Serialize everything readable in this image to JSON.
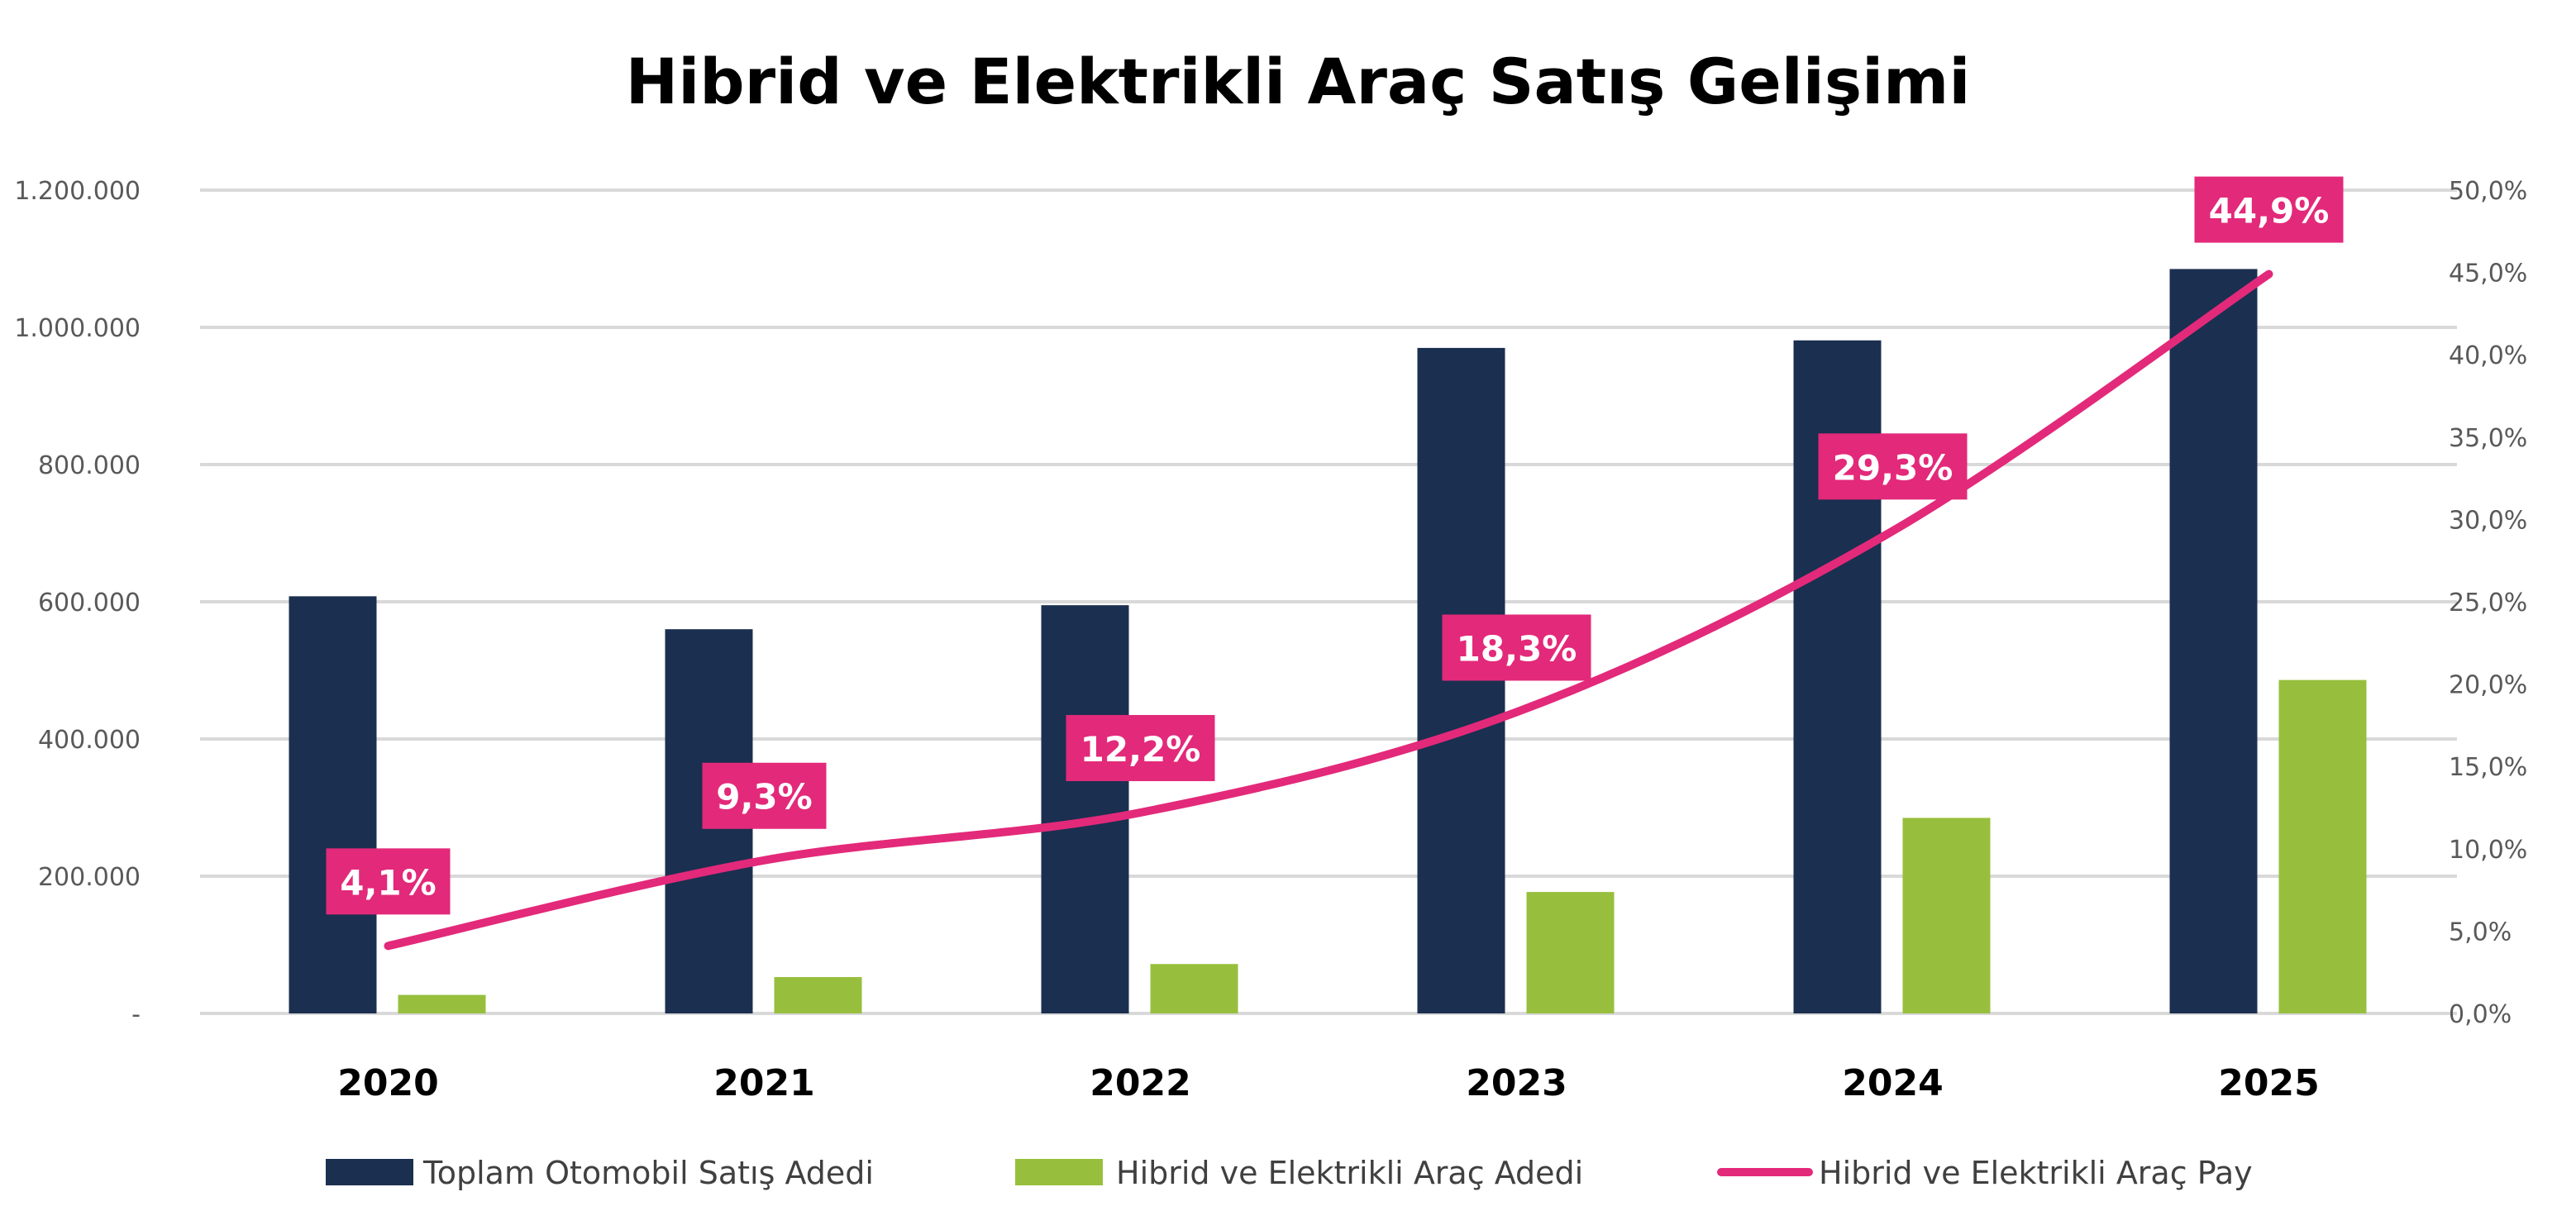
{
  "chart_data": {
    "type": "bar+line",
    "title": "Hibrid ve Elektrikli Araç Satış Gelişimi",
    "categories": [
      "2020",
      "2021",
      "2022",
      "2023",
      "2024",
      "2025"
    ],
    "series": [
      {
        "name": "Toplam Otomobil Satış Adedi",
        "type": "bar",
        "axis": "left",
        "color": "#1b2f50",
        "values": [
          608000,
          560000,
          595000,
          970000,
          981000,
          1085000
        ]
      },
      {
        "name": "Hibrid ve Elektrikli Araç Adedi",
        "type": "bar",
        "axis": "left",
        "color": "#97bf3d",
        "values": [
          27000,
          53000,
          72000,
          177000,
          285000,
          486000
        ]
      },
      {
        "name": "Hibrid ve Elektrikli Araç Payı",
        "type": "line",
        "axis": "right",
        "color": "#e3297a",
        "values": [
          4.1,
          9.3,
          12.2,
          18.3,
          29.3,
          44.9
        ],
        "data_labels": [
          "4,1%",
          "9,3%",
          "12,2%",
          "18,3%",
          "29,3%",
          "44,9%"
        ]
      }
    ],
    "left_axis": {
      "ylim": [
        0,
        1200000
      ],
      "tick_labels": [
        "-",
        "200.000",
        "400.000",
        "600.000",
        "800.000",
        "1.000.000",
        "1.200.000"
      ]
    },
    "right_axis": {
      "ylim": [
        0,
        50
      ],
      "tick_labels": [
        "0,0%",
        "5,0%",
        "10,0%",
        "15,0%",
        "20,0%",
        "25,0%",
        "30,0%",
        "35,0%",
        "40,0%",
        "45,0%",
        "50,0%"
      ]
    },
    "grid": true,
    "legend_position": "bottom",
    "legend": [
      "Toplam Otomobil Satış Adedi",
      "Hibrid ve Elektrikli Araç Adedi",
      "Hibrid ve Elektrikli Araç Pay"
    ]
  }
}
